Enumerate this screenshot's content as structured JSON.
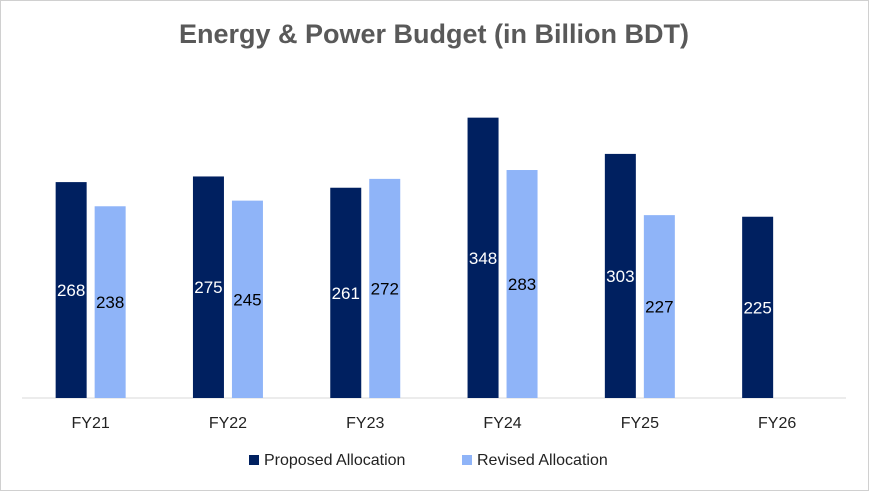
{
  "chart_data": {
    "type": "bar",
    "title": "Energy & Power Budget (in Billion BDT)",
    "xlabel": "",
    "ylabel": "",
    "ylim": [
      0,
      400
    ],
    "grid": false,
    "legend_position": "bottom",
    "categories": [
      "FY21",
      "FY22",
      "FY23",
      "FY24",
      "FY25",
      "FY26"
    ],
    "series": [
      {
        "name": "Proposed Allocation",
        "color": "#002060",
        "label_color": "#ffffff",
        "values": [
          268,
          275,
          261,
          348,
          303,
          225
        ]
      },
      {
        "name": "Revised Allocation",
        "color": "#8FB4F8",
        "label_color": "#000000",
        "values": [
          238,
          245,
          272,
          283,
          227,
          null
        ]
      }
    ]
  }
}
